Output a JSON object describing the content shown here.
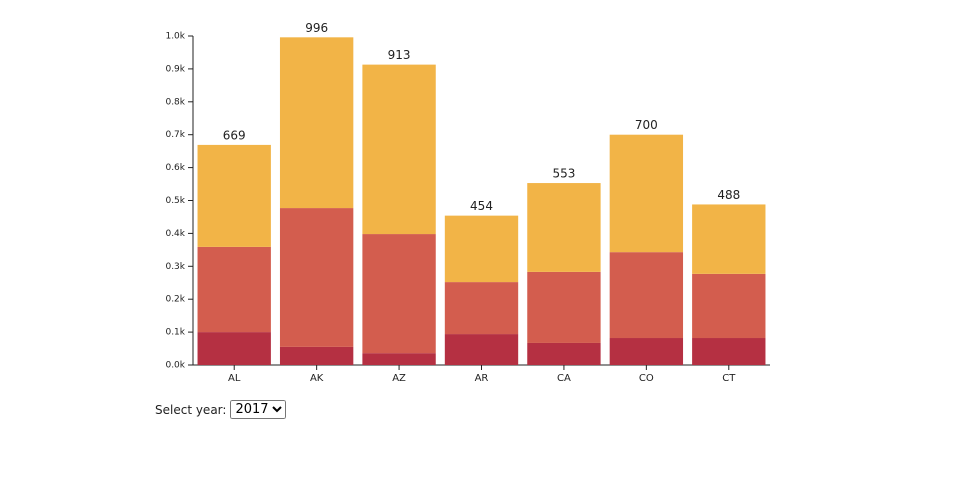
{
  "chart_data": {
    "type": "stacked_bar",
    "categories": [
      "AL",
      "AK",
      "AZ",
      "AR",
      "CA",
      "CO",
      "CT"
    ],
    "series": [
      {
        "color": "#b53042",
        "values": [
          100,
          55,
          36,
          94,
          67,
          82,
          82
        ]
      },
      {
        "color": "#d35d4e",
        "values": [
          259,
          422,
          362,
          158,
          216,
          261,
          195
        ]
      },
      {
        "color": "#f2b447",
        "values": [
          310,
          519,
          515,
          202,
          270,
          357,
          211
        ]
      }
    ],
    "totals": [
      669,
      996,
      913,
      454,
      553,
      700,
      488
    ],
    "ylim": [
      0,
      1000
    ],
    "yticks": [
      {
        "value": 0,
        "label": "0.0k"
      },
      {
        "value": 100,
        "label": "0.1k"
      },
      {
        "value": 200,
        "label": "0.2k"
      },
      {
        "value": 300,
        "label": "0.3k"
      },
      {
        "value": 400,
        "label": "0.4k"
      },
      {
        "value": 500,
        "label": "0.5k"
      },
      {
        "value": 600,
        "label": "0.6k"
      },
      {
        "value": 700,
        "label": "0.7k"
      },
      {
        "value": 800,
        "label": "0.8k"
      },
      {
        "value": 900,
        "label": "0.9k"
      },
      {
        "value": 1000,
        "label": "1.0k"
      }
    ]
  },
  "controls": {
    "label": "Select year:",
    "options": [
      "2017"
    ]
  }
}
